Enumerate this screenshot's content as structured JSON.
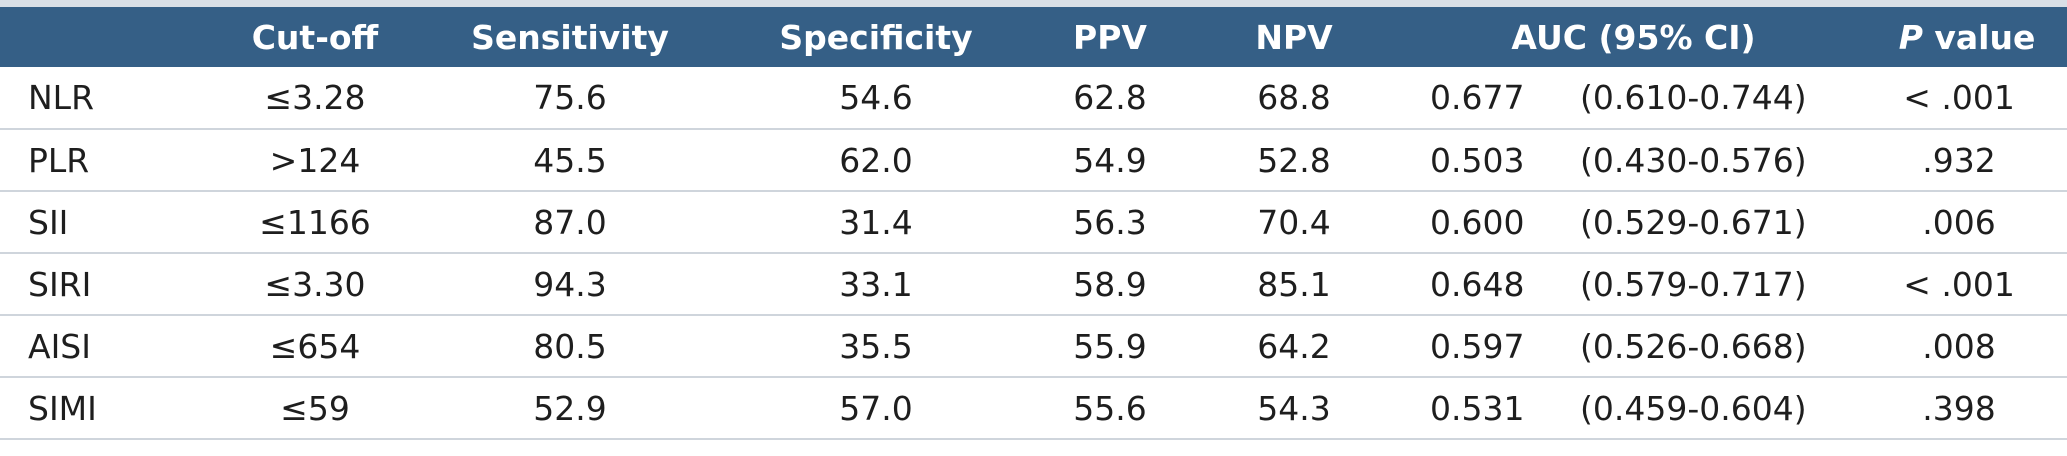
{
  "header": {
    "stub": "",
    "cutoff": "Cut-off",
    "sensitivity": "Sensitivity",
    "specificity": "Specificity",
    "ppv": "PPV",
    "npv": "NPV",
    "auc": "AUC (95% CI)",
    "p_italic": "P",
    "p_rest": " value"
  },
  "rows": [
    {
      "name": "NLR",
      "cutoff": "≤3.28",
      "sensitivity": "75.6",
      "specificity": "54.6",
      "ppv": "62.8",
      "npv": "68.8",
      "auc": "0.677",
      "ci": "(0.610-0.744)",
      "p": "< .001"
    },
    {
      "name": "PLR",
      "cutoff": ">124",
      "sensitivity": "45.5",
      "specificity": "62.0",
      "ppv": "54.9",
      "npv": "52.8",
      "auc": "0.503",
      "ci": "(0.430-0.576)",
      "p": ".932"
    },
    {
      "name": "SII",
      "cutoff": "≤1166",
      "sensitivity": "87.0",
      "specificity": "31.4",
      "ppv": "56.3",
      "npv": "70.4",
      "auc": "0.600",
      "ci": "(0.529-0.671)",
      "p": ".006"
    },
    {
      "name": "SIRI",
      "cutoff": "≤3.30",
      "sensitivity": "94.3",
      "specificity": "33.1",
      "ppv": "58.9",
      "npv": "85.1",
      "auc": "0.648",
      "ci": "(0.579-0.717)",
      "p": "< .001"
    },
    {
      "name": "AISI",
      "cutoff": "≤654",
      "sensitivity": "80.5",
      "specificity": "35.5",
      "ppv": "55.9",
      "npv": "64.2",
      "auc": "0.597",
      "ci": "(0.526-0.668)",
      "p": ".008"
    },
    {
      "name": "SIMI",
      "cutoff": "≤59",
      "sensitivity": "52.9",
      "specificity": "57.0",
      "ppv": "55.6",
      "npv": "54.3",
      "auc": "0.531",
      "ci": "(0.459-0.604)",
      "p": ".398"
    }
  ],
  "colors": {
    "header_bg": "#355f86",
    "header_text": "#ffffff",
    "row_divider": "#cfd5dc",
    "top_rule": "#d9dfe6"
  }
}
